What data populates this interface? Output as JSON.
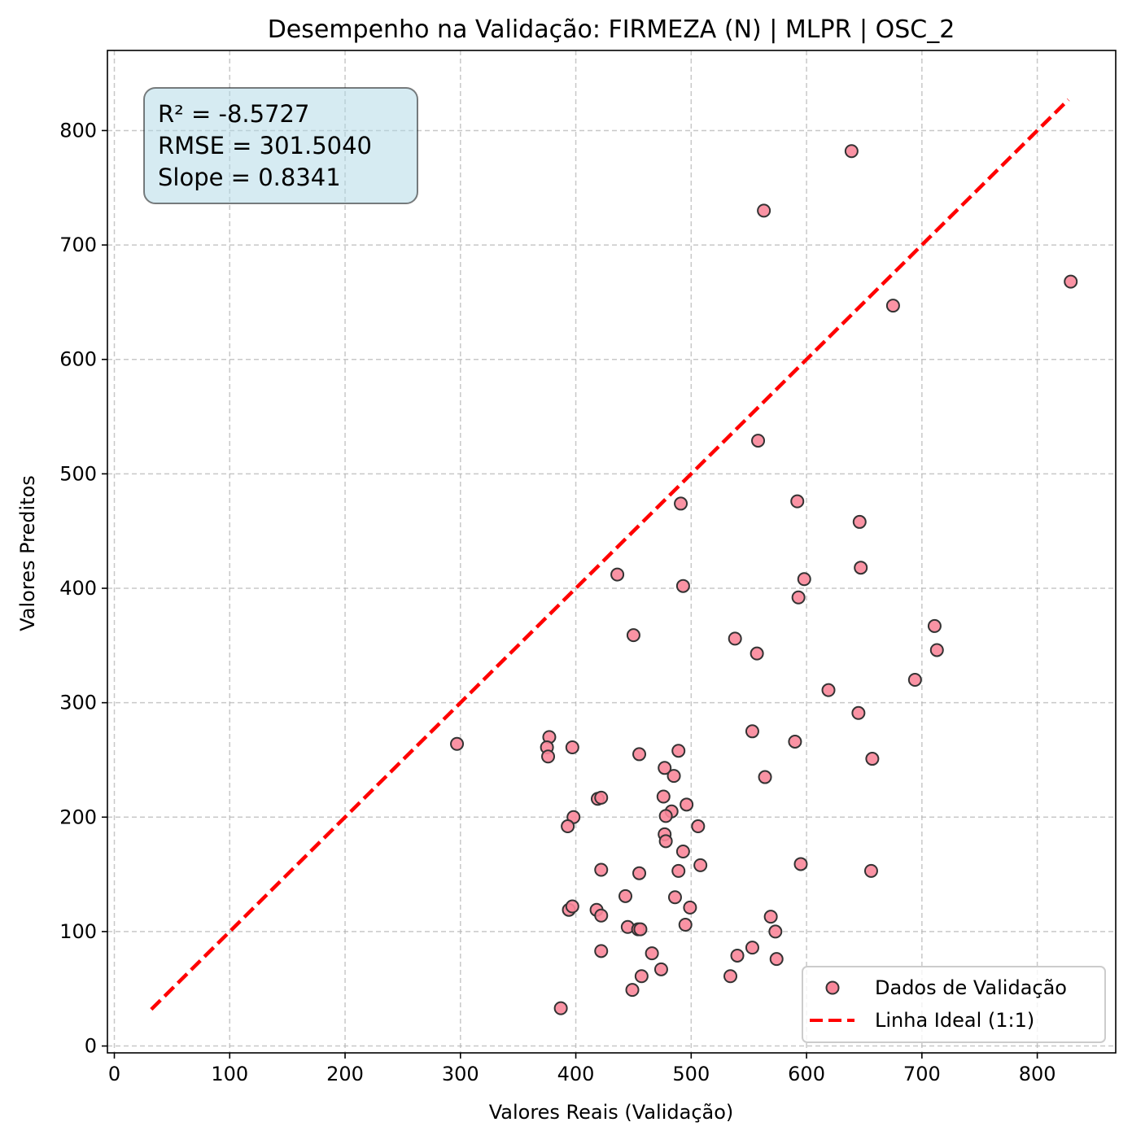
{
  "chart_data": {
    "type": "scatter",
    "title": "Desempenho na Validação: FIRMEZA (N) | MLPR | OSC_2",
    "xlabel": "Valores Reais (Validação)",
    "ylabel": "Valores Preditos",
    "xlim": [
      -6,
      868
    ],
    "ylim": [
      -6,
      870
    ],
    "xticks": [
      0,
      100,
      200,
      300,
      400,
      500,
      600,
      700,
      800
    ],
    "yticks": [
      0,
      100,
      200,
      300,
      400,
      500,
      600,
      700,
      800
    ],
    "grid": true,
    "legend_position": "lower-right",
    "stats": {
      "r2": "R² = -8.5727",
      "rmse": "RMSE = 301.5040",
      "slope": "Slope = 0.8341"
    },
    "series": [
      {
        "name": "Dados de Validação",
        "kind": "scatter",
        "color": "#f9879a",
        "edge_color": "#333333",
        "points": [
          [
            639,
            782
          ],
          [
            563,
            730
          ],
          [
            829,
            668
          ],
          [
            675,
            647
          ],
          [
            558,
            529
          ],
          [
            491,
            474
          ],
          [
            592,
            476
          ],
          [
            646,
            458
          ],
          [
            647,
            418
          ],
          [
            436,
            412
          ],
          [
            493,
            402
          ],
          [
            598,
            408
          ],
          [
            593,
            392
          ],
          [
            450,
            359
          ],
          [
            538,
            356
          ],
          [
            557,
            343
          ],
          [
            711,
            367
          ],
          [
            713,
            346
          ],
          [
            694,
            320
          ],
          [
            619,
            311
          ],
          [
            645,
            291
          ],
          [
            553,
            275
          ],
          [
            590,
            266
          ],
          [
            657,
            251
          ],
          [
            564,
            235
          ],
          [
            297,
            264
          ],
          [
            377,
            270
          ],
          [
            375,
            261
          ],
          [
            376,
            253
          ],
          [
            397,
            261
          ],
          [
            455,
            255
          ],
          [
            489,
            258
          ],
          [
            477,
            243
          ],
          [
            485,
            236
          ],
          [
            419,
            216
          ],
          [
            422,
            217
          ],
          [
            476,
            218
          ],
          [
            496,
            211
          ],
          [
            483,
            205
          ],
          [
            478,
            201
          ],
          [
            398,
            200
          ],
          [
            393,
            192
          ],
          [
            506,
            192
          ],
          [
            477,
            185
          ],
          [
            478,
            179
          ],
          [
            493,
            170
          ],
          [
            508,
            158
          ],
          [
            595,
            159
          ],
          [
            656,
            153
          ],
          [
            422,
            154
          ],
          [
            455,
            151
          ],
          [
            489,
            153
          ],
          [
            443,
            131
          ],
          [
            486,
            130
          ],
          [
            394,
            119
          ],
          [
            397,
            122
          ],
          [
            418,
            119
          ],
          [
            422,
            114
          ],
          [
            499,
            121
          ],
          [
            569,
            113
          ],
          [
            495,
            106
          ],
          [
            445,
            104
          ],
          [
            454,
            102
          ],
          [
            456,
            102
          ],
          [
            573,
            100
          ],
          [
            422,
            83
          ],
          [
            466,
            81
          ],
          [
            540,
            79
          ],
          [
            553,
            86
          ],
          [
            574,
            76
          ],
          [
            474,
            67
          ],
          [
            457,
            61
          ],
          [
            534,
            61
          ],
          [
            449,
            49
          ],
          [
            387,
            33
          ]
        ]
      },
      {
        "name": "Linha Ideal (1:1)",
        "kind": "line",
        "color": "#ff0000",
        "dash": true,
        "x": [
          32,
          827
        ],
        "y": [
          32,
          827
        ]
      }
    ]
  }
}
